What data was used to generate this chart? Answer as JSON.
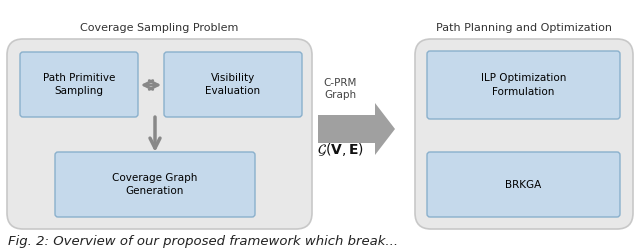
{
  "fig_width": 6.4,
  "fig_height": 2.49,
  "dpi": 100,
  "bg_color": "#ffffff",
  "outer_box_color": "#c8c8c8",
  "outer_box_fill": "#e8e8e8",
  "inner_box_fill": "#c5d9eb",
  "inner_box_edge": "#8ab0cc",
  "arrow_color": "#a0a0a0",
  "arrow_color_dark": "#888888",
  "title_fontsize": 8.0,
  "label_fontsize": 7.5,
  "left_title": "Coverage Sampling Problem",
  "right_title": "Path Planning and Optimization",
  "box_labels": {
    "path_primitive": "Path Primitive\nSampling",
    "visibility": "Visibility\nEvaluation",
    "coverage_graph": "Coverage Graph\nGeneration",
    "ilp": "ILP Optimization\nFormulation",
    "brkga": "BRKGA"
  },
  "arrow_label_line1": "C-PRM",
  "arrow_label_line2": "Graph",
  "arrow_label_math": "$\\mathcal{G}(\\mathbf{V}, \\mathbf{E})$",
  "caption": "Fig. 2: Overview of our proposed framework which break..."
}
